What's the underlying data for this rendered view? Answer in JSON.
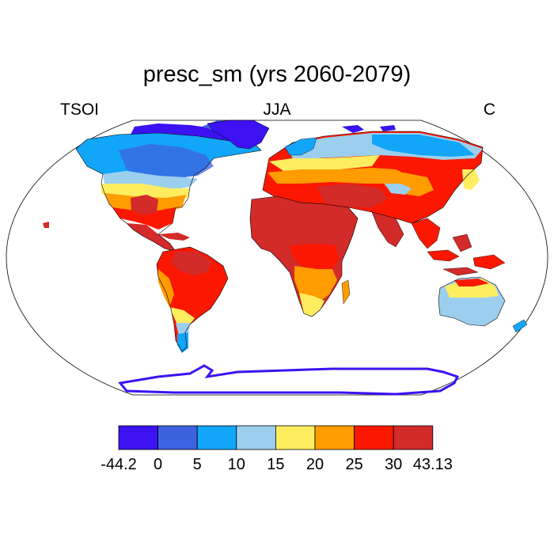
{
  "title": "presc_sm (yrs 2060-2079)",
  "left_label": "TSOI",
  "center_label": "JJA",
  "right_label": "C",
  "legend": {
    "labels": [
      "-44.2",
      "0",
      "5",
      "10",
      "15",
      "20",
      "25",
      "30",
      "43.13"
    ],
    "colors": [
      "#3c12f2",
      "#3d62e0",
      "#12a6f8",
      "#9ccfee",
      "#ffed60",
      "#ff9c00",
      "#fc1800",
      "#d32a2a"
    ]
  },
  "colors": {
    "ocean": "#ffffff",
    "outline": "#000000",
    "antarctica_edge": "#3c12f2"
  }
}
